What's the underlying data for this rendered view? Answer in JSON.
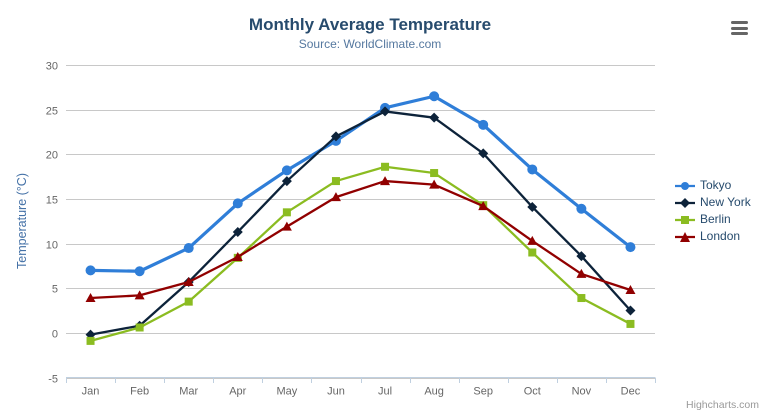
{
  "chart_data": {
    "type": "line",
    "title": "Monthly Average Temperature",
    "subtitle": "Source: WorldClimate.com",
    "categories": [
      "Jan",
      "Feb",
      "Mar",
      "Apr",
      "May",
      "Jun",
      "Jul",
      "Aug",
      "Sep",
      "Oct",
      "Nov",
      "Dec"
    ],
    "xlabel": "",
    "ylabel": "Temperature (°C)",
    "ylim": [
      -5,
      30
    ],
    "ytick_step": 5,
    "grid": true,
    "legend_position": "right",
    "series": [
      {
        "name": "Tokyo",
        "color": "#2f7ed8",
        "marker": "circle",
        "values": [
          7.0,
          6.9,
          9.5,
          14.5,
          18.2,
          21.5,
          25.2,
          26.5,
          23.3,
          18.3,
          13.9,
          9.6
        ]
      },
      {
        "name": "New York",
        "color": "#0d233a",
        "marker": "diamond",
        "values": [
          -0.2,
          0.8,
          5.7,
          11.3,
          17.0,
          22.0,
          24.8,
          24.1,
          20.1,
          14.1,
          8.6,
          2.5
        ]
      },
      {
        "name": "Berlin",
        "color": "#8bbc21",
        "marker": "square",
        "values": [
          -0.9,
          0.6,
          3.5,
          8.4,
          13.5,
          17.0,
          18.6,
          17.9,
          14.3,
          9.0,
          3.9,
          1.0
        ]
      },
      {
        "name": "London",
        "color": "#910000",
        "marker": "triangle",
        "values": [
          3.9,
          4.2,
          5.7,
          8.5,
          11.9,
          15.2,
          17.0,
          16.6,
          14.2,
          10.3,
          6.6,
          4.8
        ]
      }
    ],
    "credits": "Highcharts.com"
  },
  "toolbar": {
    "export_menu_icon": "hamburger-menu-icon"
  },
  "theme": {
    "title_color": "#274b6d",
    "subtitle_color": "#55789f",
    "axis_title_color": "#4572a7",
    "axis_label_color": "#666666",
    "legend_text_color": "#274b6d",
    "gridline_color": "#c8c8c8",
    "axis_line_color": "#c0d0e0",
    "credits_color": "#999999",
    "menu_icon_color": "#666666"
  }
}
